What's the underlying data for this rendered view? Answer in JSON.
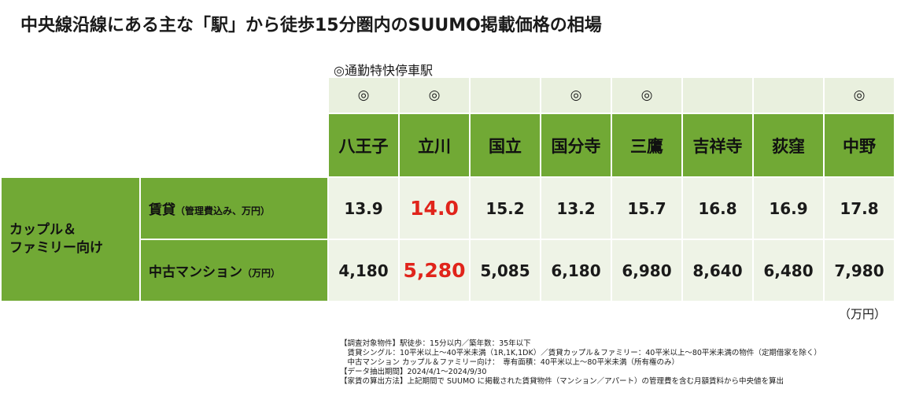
{
  "title": "中央線沿線にある主な「駅」から徒歩15分圏内のSUUMO掲載価格の相場",
  "legend": "◎通勤特快停車駅",
  "rapid_mark": "◎",
  "stations": [
    {
      "name": "八王子",
      "rapid": true,
      "rent": "13.9",
      "condo": "4,180",
      "highlight": false
    },
    {
      "name": "立川",
      "rapid": true,
      "rent": "14.0",
      "condo": "5,280",
      "highlight": true
    },
    {
      "name": "国立",
      "rapid": false,
      "rent": "15.2",
      "condo": "5,085",
      "highlight": false
    },
    {
      "name": "国分寺",
      "rapid": true,
      "rent": "13.2",
      "condo": "6,180",
      "highlight": false
    },
    {
      "name": "三鷹",
      "rapid": true,
      "rent": "15.7",
      "condo": "6,980",
      "highlight": false
    },
    {
      "name": "吉祥寺",
      "rapid": false,
      "rent": "16.8",
      "condo": "8,640",
      "highlight": false
    },
    {
      "name": "荻窪",
      "rapid": false,
      "rent": "16.9",
      "condo": "6,480",
      "highlight": false
    },
    {
      "name": "中野",
      "rapid": true,
      "rent": "17.8",
      "condo": "7,980",
      "highlight": false
    }
  ],
  "group_label_line1": "カップル＆",
  "group_label_line2": "ファミリー向け",
  "rent_label": "賃貸",
  "rent_sub": "（管理費込み、万円）",
  "condo_label": "中古マンション",
  "condo_sub": "（万円）",
  "unit": "（万円）",
  "notes": [
    "【調査対象物件】駅徒歩：15分以内／築年数：35年以下",
    "　賃貸シングル：10平米以上～40平米未満（1R,1K,1DK）／賃貸カップル＆ファミリー：40平米以上～80平米未満の物件（定期借家を除く）",
    "　中古マンション カップル＆ファミリー向け：　専有面積：40平米以上～80平米未満（所有権のみ）",
    "【データ抽出期間】2024/4/1～2024/9/30",
    "【家賃の算出方法】上記期間で SUUMO に掲載された賃貸物件（マンション／アパート）の管理費を含む月額賃料から中央値を算出"
  ]
}
